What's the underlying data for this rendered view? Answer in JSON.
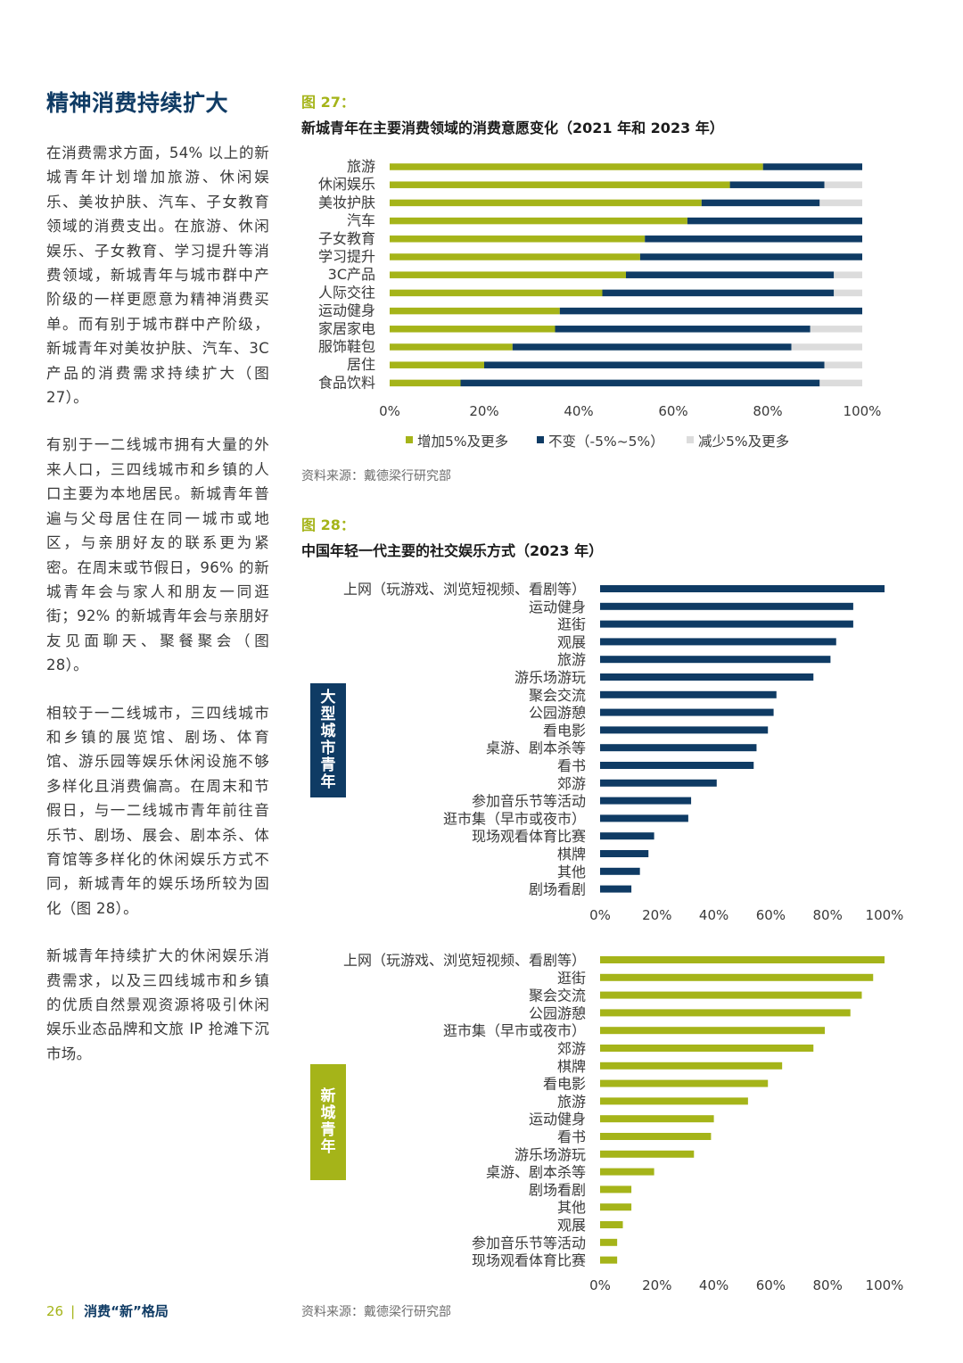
{
  "colors": {
    "navy": "#0f3b64",
    "green": "#a5b419",
    "grey": "#dcdcdc"
  },
  "section": {
    "title": "精神消费持续扩大",
    "paragraphs": [
      "在消费需求方面，54% 以上的新城青年计划增加旅游、休闲娱乐、美妆护肤、汽车、子女教育领域的消费支出。在旅游、休闲娱乐、子女教育、学习提升等消费领域，新城青年与城市群中产阶级的一样更愿意为精神消费买单。而有别于城市群中产阶级，新城青年对美妆护肤、汽车、3C 产品的消费需求持续扩大（图 27）。",
      "有别于一二线城市拥有大量的外来人口，三四线城市和乡镇的人口主要为本地居民。新城青年普遍与父母居住在同一城市或地区，与亲朋好友的联系更为紧密。在周末或节假日，96% 的新城青年会与家人和朋友一同逛街；92% 的新城青年会与亲朋好友见面聊天、聚餐聚会（图 28）。",
      "相较于一二线城市，三四线城市和乡镇的展览馆、剧场、体育馆、游乐园等娱乐休闲设施不够多样化且消费偏高。在周末和节假日，与一二线城市青年前往音乐节、剧场、展会、剧本杀、体育馆等多样化的休闲娱乐方式不同，新城青年的娱乐场所较为固化（图 28）。",
      "新城青年持续扩大的休闲娱乐消费需求，以及三四线城市和乡镇的优质自然景观资源将吸引休闲娱乐业态品牌和文旅 IP 抢滩下沉市场。"
    ]
  },
  "fig27": {
    "label": "图 27：",
    "title": "新城青年在主要消费领域的消费意愿变化（2021 年和 2023 年）",
    "source": "资料来源：戴德梁行研究部"
  },
  "fig28": {
    "label": "图 28：",
    "title": "中国年轻一代主要的社交娱乐方式（2023 年）",
    "source": "资料来源：戴德梁行研究部",
    "tag_big": "大型城市青年",
    "tag_new": "新城青年"
  },
  "footer": {
    "page": "26",
    "sep": "|",
    "title": "消费“新”格局"
  },
  "chart_data": [
    {
      "id": "fig27",
      "type": "bar",
      "orientation": "horizontal",
      "stacked": true,
      "title": "新城青年在主要消费领域的消费意愿变化（2021 年和 2023 年）",
      "categories": [
        "旅游",
        "休闲娱乐",
        "美妆护肤",
        "汽车",
        "子女教育",
        "学习提升",
        "3C产品",
        "人际交往",
        "运动健身",
        "家居家电",
        "服饰鞋包",
        "居住",
        "食品饮料"
      ],
      "series": [
        {
          "name": "增加5%及更多",
          "color": "#a5b419",
          "values": [
            79,
            72,
            66,
            63,
            54,
            53,
            50,
            45,
            36,
            35,
            26,
            20,
            15
          ]
        },
        {
          "name": "不变（-5%~5%）",
          "color": "#0f3b64",
          "values": [
            21,
            20,
            25,
            37,
            46,
            47,
            44,
            49,
            64,
            54,
            59,
            72,
            76
          ]
        },
        {
          "name": "减少5%及更多",
          "color": "#dcdcdc",
          "values": [
            0,
            8,
            9,
            0,
            0,
            0,
            6,
            6,
            0,
            11,
            15,
            8,
            9
          ]
        }
      ],
      "xlim": [
        0,
        100
      ],
      "xticks": [
        "0%",
        "20%",
        "40%",
        "60%",
        "80%",
        "100%"
      ],
      "legend": "bottom"
    },
    {
      "id": "fig28-big-city",
      "type": "bar",
      "orientation": "horizontal",
      "group_label": "大型城市青年",
      "color": "#0f3b64",
      "categories": [
        "上网（玩游戏、浏览短视频、看剧等）",
        "运动健身",
        "逛街",
        "观展",
        "旅游",
        "游乐场游玩",
        "聚会交流",
        "公园游憩",
        "看电影",
        "桌游、剧本杀等",
        "看书",
        "郊游",
        "参加音乐节等活动",
        "逛市集（早市或夜市）",
        "现场观看体育比赛",
        "棋牌",
        "其他",
        "剧场看剧"
      ],
      "values": [
        100,
        89,
        89,
        83,
        81,
        75,
        62,
        61,
        59,
        55,
        54,
        41,
        32,
        31,
        19,
        17,
        14,
        11
      ],
      "xlim": [
        0,
        100
      ],
      "xticks": [
        "0%",
        "20%",
        "40%",
        "60%",
        "80%",
        "100%"
      ]
    },
    {
      "id": "fig28-new-city",
      "type": "bar",
      "orientation": "horizontal",
      "group_label": "新城青年",
      "color": "#a5b419",
      "categories": [
        "上网（玩游戏、浏览短视频、看剧等）",
        "逛街",
        "聚会交流",
        "公园游憩",
        "逛市集（早市或夜市）",
        "郊游",
        "棋牌",
        "看电影",
        "旅游",
        "运动健身",
        "看书",
        "游乐场游玩",
        "桌游、剧本杀等",
        "剧场看剧",
        "其他",
        "观展",
        "参加音乐节等活动",
        "现场观看体育比赛"
      ],
      "values": [
        100,
        96,
        92,
        88,
        79,
        75,
        64,
        59,
        52,
        40,
        39,
        33,
        19,
        11,
        11,
        8,
        6,
        6
      ],
      "xlim": [
        0,
        100
      ],
      "xticks": [
        "0%",
        "20%",
        "40%",
        "60%",
        "80%",
        "100%"
      ]
    }
  ]
}
